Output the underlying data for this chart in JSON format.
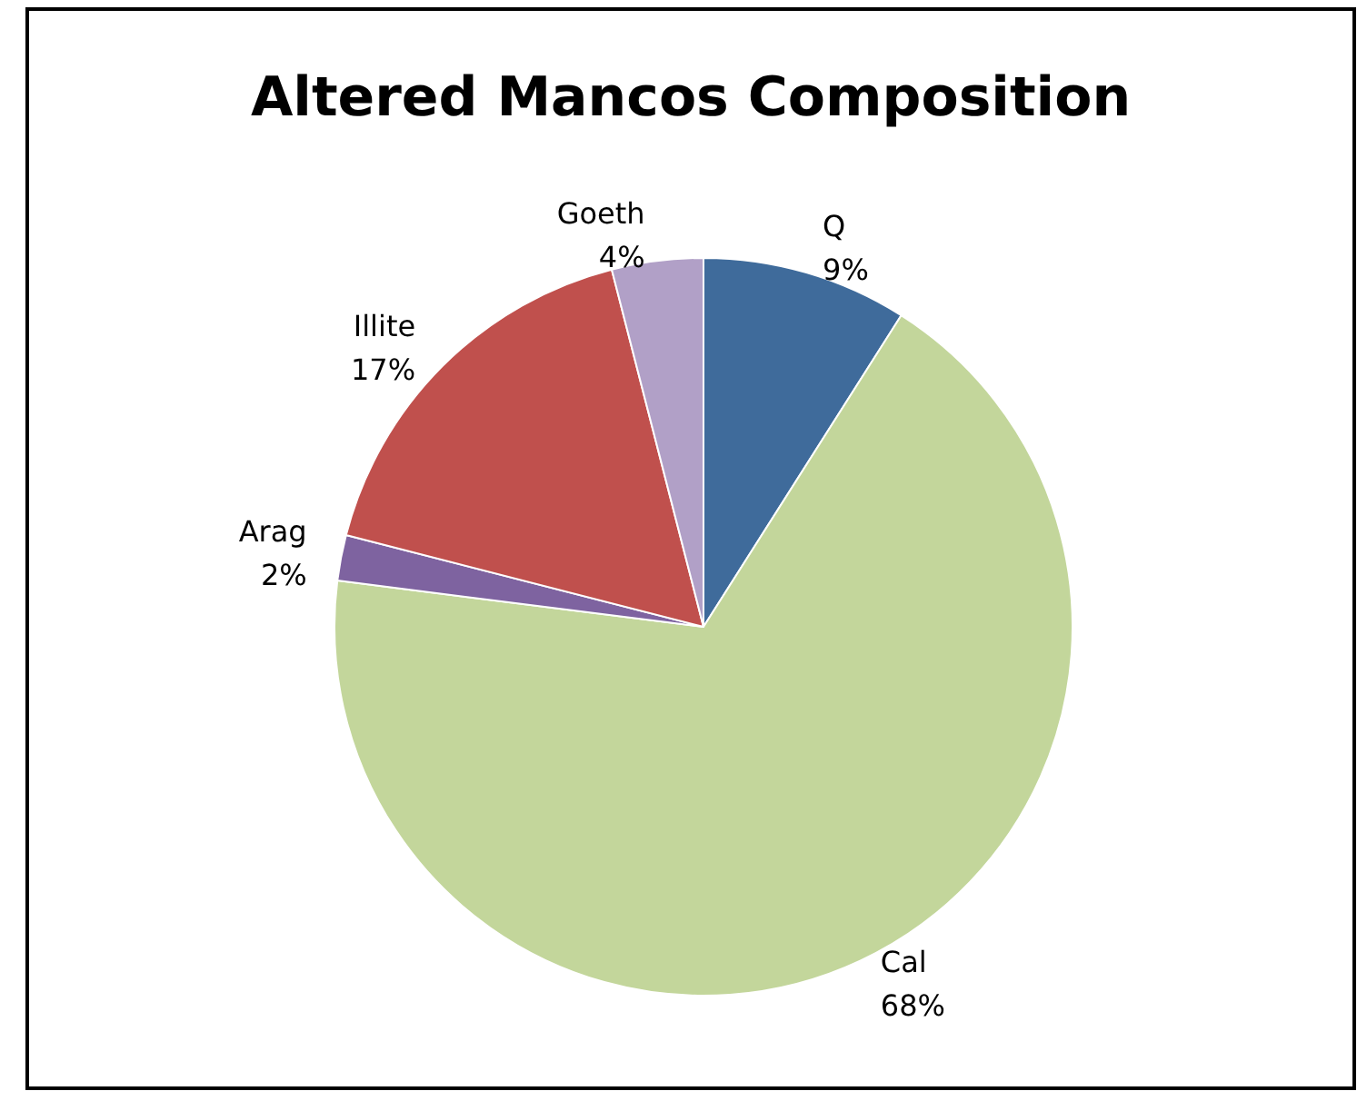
{
  "chart_data": {
    "type": "pie",
    "title": "Altered Mancos Composition",
    "categories": [
      "Q",
      "Cal",
      "Arag",
      "Illite",
      "Goeth"
    ],
    "values": [
      9,
      68,
      2,
      17,
      4
    ],
    "value_labels": [
      "9%",
      "68%",
      "2%",
      "17%",
      "4%"
    ],
    "colors": [
      "#3f6b9b",
      "#c3d69b",
      "#7e63a0",
      "#c0504d",
      "#b1a0c7"
    ],
    "legend": false
  }
}
